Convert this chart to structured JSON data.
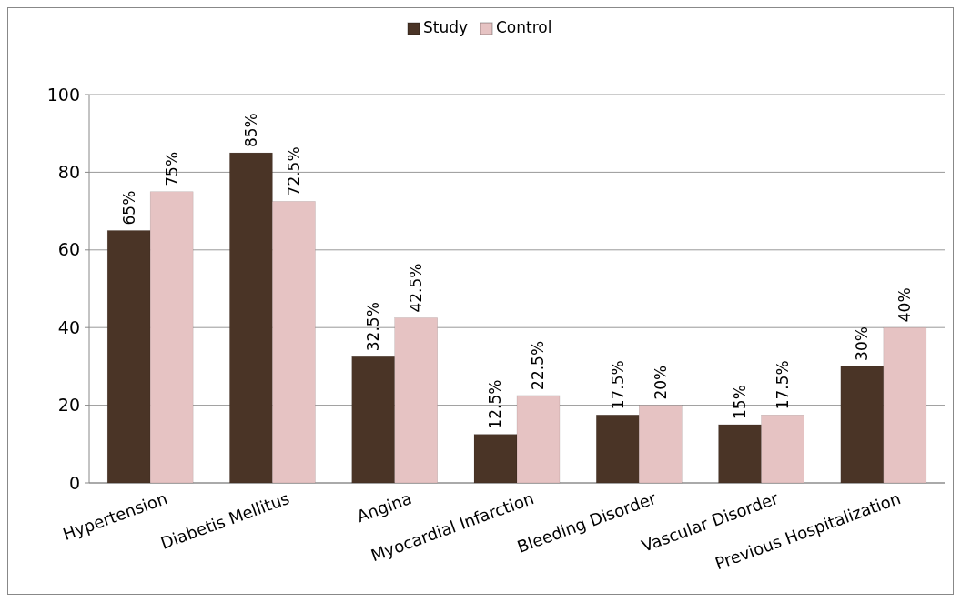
{
  "chart_data": {
    "type": "bar",
    "categories": [
      "Hypertension",
      "Diabetis Mellitus",
      "Angina",
      "Myocardial Infarction",
      "Bleeding Disorder",
      "Vascular Disorder",
      "Previous Hospitalization"
    ],
    "series": [
      {
        "name": "Study",
        "color": "#4a3426",
        "values": [
          65,
          85,
          32.5,
          12.5,
          17.5,
          15,
          30
        ],
        "value_labels": [
          "65%",
          "85%",
          "32.5%",
          "12.5%",
          "17.5%",
          "15%",
          "30%"
        ]
      },
      {
        "name": "Control",
        "color": "#e6c3c3",
        "values": [
          75,
          72.5,
          42.5,
          22.5,
          20,
          17.5,
          40
        ],
        "value_labels": [
          "75%",
          "72.5%",
          "42.5%",
          "22.5%",
          "20%",
          "17.5%",
          "40%"
        ]
      }
    ],
    "ylim": [
      0,
      100
    ],
    "yticks": [
      0,
      20,
      40,
      60,
      80,
      100
    ],
    "grid": "y",
    "legend": "top"
  }
}
